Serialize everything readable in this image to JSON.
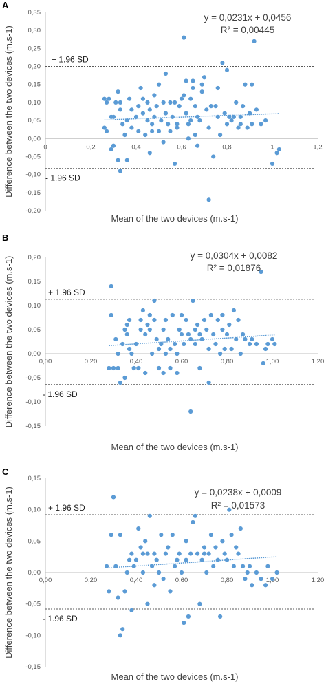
{
  "panels": [
    {
      "label": "A",
      "equation": "y = 0,0231x + 0,0456",
      "r2": "R² = 0,00445",
      "xlabel": "Mean of the two devices (m.s-1)",
      "ylabel": "Difference between the two devices (m.s-1)",
      "upper_sd_label": "+ 1.96 SD",
      "lower_sd_label": "- 1.96 SD",
      "x_ticks": [
        "0",
        "0,2",
        "0,4",
        "0,6",
        "0,8",
        "1",
        "1,2"
      ],
      "y_ticks": [
        "0,35",
        "0,30",
        "0,25",
        "0,20",
        "0,15",
        "0,10",
        "0,05",
        "0,00",
        "-0,05",
        "-0,10",
        "-0,15",
        "-0,20"
      ]
    },
    {
      "label": "B",
      "equation": "y = 0,0304x + 0,0082",
      "r2": "R² = 0,01876",
      "xlabel": "Mean of the two devices (m.s-1)",
      "ylabel": "Difference between the two devices (m.s-1)",
      "upper_sd_label": "+ 1.96 SD",
      "lower_sd_label": "- 1.96 SD",
      "x_ticks": [
        "0,00",
        "0,20",
        "0,40",
        "0,60",
        "0,80",
        "1,00",
        "1,20"
      ],
      "y_ticks": [
        "0,20",
        "0,15",
        "0,10",
        "0,05",
        "0,00",
        "-0,05",
        "-0,10",
        "-0,15"
      ]
    },
    {
      "label": "C",
      "equation": "y = 0,0238x + 0,0009",
      "r2": "R² = 0,01573",
      "xlabel": "Mean of the two devices (m.s-1)",
      "ylabel": "Difference between the two devices (m.s-1)",
      "upper_sd_label": "+ 1.96 SD",
      "lower_sd_label": "- 1.96 SD",
      "x_ticks": [
        "0,00",
        "0,20",
        "0,40",
        "0,60",
        "0,80",
        "1,00",
        "1,20"
      ],
      "y_ticks": [
        "0,15",
        "0,10",
        "0,05",
        "0,00",
        "-0,05",
        "-0,10",
        "-0,15"
      ]
    }
  ],
  "colors": {
    "points": "#5b9bd5",
    "trend": "#5b9bd5",
    "sd_line": "#595959",
    "axis": "#bfbfbf"
  },
  "chart_data": [
    {
      "type": "scatter",
      "xlim": [
        0,
        1.2
      ],
      "ylim": [
        -0.2,
        0.35
      ],
      "regression": {
        "slope": 0.0231,
        "intercept": 0.0456,
        "r2": 0.00445
      },
      "upper_loa": 0.2,
      "lower_loa": -0.083,
      "points": [
        [
          0.26,
          0.11
        ],
        [
          0.27,
          0.1
        ],
        [
          0.28,
          0.11
        ],
        [
          0.26,
          0.03
        ],
        [
          0.27,
          0.02
        ],
        [
          0.29,
          0.06
        ],
        [
          0.3,
          0.06
        ],
        [
          0.29,
          -0.03
        ],
        [
          0.3,
          -0.02
        ],
        [
          0.31,
          0.1
        ],
        [
          0.32,
          0.13
        ],
        [
          0.33,
          0.08
        ],
        [
          0.33,
          0.1
        ],
        [
          0.34,
          0.04
        ],
        [
          0.32,
          -0.06
        ],
        [
          0.33,
          -0.09
        ],
        [
          0.35,
          0.01
        ],
        [
          0.36,
          -0.06
        ],
        [
          0.36,
          0.05
        ],
        [
          0.37,
          0.11
        ],
        [
          0.38,
          0.08
        ],
        [
          0.4,
          0.06
        ],
        [
          0.41,
          0.09
        ],
        [
          0.41,
          0.02
        ],
        [
          0.42,
          0.14
        ],
        [
          0.43,
          0.11
        ],
        [
          0.43,
          0.07
        ],
        [
          0.44,
          0.01
        ],
        [
          0.45,
          0.1
        ],
        [
          0.45,
          0.05
        ],
        [
          0.46,
          0.08
        ],
        [
          0.46,
          -0.04
        ],
        [
          0.47,
          0.02
        ],
        [
          0.47,
          0.04
        ],
        [
          0.48,
          0.06
        ],
        [
          0.49,
          0.09
        ],
        [
          0.5,
          0.02
        ],
        [
          0.5,
          0.15
        ],
        [
          0.51,
          0.05
        ],
        [
          0.52,
          0.1
        ],
        [
          0.52,
          -0.01
        ],
        [
          0.53,
          0.07
        ],
        [
          0.53,
          0.18
        ],
        [
          0.54,
          0.04
        ],
        [
          0.55,
          0.1
        ],
        [
          0.56,
          0.06
        ],
        [
          0.57,
          0.1
        ],
        [
          0.57,
          -0.07
        ],
        [
          0.58,
          0.04
        ],
        [
          0.59,
          0.09
        ],
        [
          0.6,
          0.11
        ],
        [
          0.61,
          0.28
        ],
        [
          0.61,
          0.12
        ],
        [
          0.62,
          0.16
        ],
        [
          0.62,
          0.07
        ],
        [
          0.63,
          0.04
        ],
        [
          0.63,
          0.0
        ],
        [
          0.64,
          0.11
        ],
        [
          0.64,
          0.05
        ],
        [
          0.65,
          0.14
        ],
        [
          0.65,
          0.16
        ],
        [
          0.66,
          0.09
        ],
        [
          0.66,
          0.01
        ],
        [
          0.67,
          0.06
        ],
        [
          0.67,
          -0.02
        ],
        [
          0.68,
          0.05
        ],
        [
          0.69,
          0.15
        ],
        [
          0.69,
          0.13
        ],
        [
          0.7,
          0.17
        ],
        [
          0.71,
          0.08
        ],
        [
          0.72,
          0.03
        ],
        [
          0.73,
          0.09
        ],
        [
          0.74,
          -0.05
        ],
        [
          0.75,
          0.09
        ],
        [
          0.76,
          0.14
        ],
        [
          0.76,
          0.06
        ],
        [
          0.77,
          0.01
        ],
        [
          0.78,
          0.21
        ],
        [
          0.79,
          0.07
        ],
        [
          0.8,
          0.19
        ],
        [
          0.8,
          0.04
        ],
        [
          0.81,
          0.06
        ],
        [
          0.82,
          0.05
        ],
        [
          0.83,
          0.06
        ],
        [
          0.84,
          0.1
        ],
        [
          0.85,
          0.03
        ],
        [
          0.86,
          0.06
        ],
        [
          0.87,
          0.09
        ],
        [
          0.88,
          0.15
        ],
        [
          0.89,
          0.03
        ],
        [
          0.9,
          0.07
        ],
        [
          0.91,
          0.15
        ],
        [
          0.91,
          0.04
        ],
        [
          0.92,
          0.27
        ],
        [
          0.93,
          0.08
        ],
        [
          0.95,
          0.04
        ],
        [
          0.97,
          0.05
        ],
        [
          1.0,
          -0.07
        ],
        [
          1.02,
          -0.04
        ],
        [
          1.03,
          -0.03
        ],
        [
          0.72,
          -0.17
        ],
        [
          0.58,
          0.03
        ],
        [
          0.48,
          0.12
        ],
        [
          0.38,
          0.03
        ],
        [
          0.55,
          0.02
        ],
        [
          0.86,
          0.04
        ]
      ]
    },
    {
      "type": "scatter",
      "xlim": [
        0,
        1.2
      ],
      "ylim": [
        -0.15,
        0.2
      ],
      "regression": {
        "slope": 0.0304,
        "intercept": 0.0082,
        "r2": 0.01876
      },
      "upper_loa": 0.113,
      "lower_loa": -0.064,
      "points": [
        [
          0.28,
          -0.03
        ],
        [
          0.29,
          0.08
        ],
        [
          0.29,
          0.14
        ],
        [
          0.3,
          -0.03
        ],
        [
          0.31,
          0.03
        ],
        [
          0.32,
          -0.03
        ],
        [
          0.32,
          0.0
        ],
        [
          0.33,
          -0.06
        ],
        [
          0.34,
          0.02
        ],
        [
          0.35,
          0.05
        ],
        [
          0.35,
          -0.05
        ],
        [
          0.36,
          0.04
        ],
        [
          0.36,
          0.06
        ],
        [
          0.37,
          0.01
        ],
        [
          0.37,
          0.07
        ],
        [
          0.38,
          0.0
        ],
        [
          0.39,
          -0.03
        ],
        [
          0.4,
          0.02
        ],
        [
          0.41,
          -0.03
        ],
        [
          0.42,
          0.07
        ],
        [
          0.43,
          0.09
        ],
        [
          0.44,
          0.04
        ],
        [
          0.44,
          -0.04
        ],
        [
          0.45,
          0.06
        ],
        [
          0.46,
          0.08
        ],
        [
          0.46,
          0.05
        ],
        [
          0.47,
          0.0
        ],
        [
          0.48,
          0.11
        ],
        [
          0.48,
          0.07
        ],
        [
          0.49,
          0.03
        ],
        [
          0.5,
          -0.03
        ],
        [
          0.5,
          0.01
        ],
        [
          0.51,
          0.02
        ],
        [
          0.52,
          -0.04
        ],
        [
          0.53,
          0.07
        ],
        [
          0.53,
          0.0
        ],
        [
          0.54,
          0.03
        ],
        [
          0.55,
          0.01
        ],
        [
          0.55,
          -0.03
        ],
        [
          0.56,
          0.08
        ],
        [
          0.57,
          0.02
        ],
        [
          0.58,
          0.0
        ],
        [
          0.58,
          -0.04
        ],
        [
          0.59,
          0.05
        ],
        [
          0.6,
          0.08
        ],
        [
          0.61,
          0.02
        ],
        [
          0.62,
          0.07
        ],
        [
          0.63,
          0.04
        ],
        [
          0.64,
          -0.12
        ],
        [
          0.64,
          0.03
        ],
        [
          0.65,
          0.11
        ],
        [
          0.66,
          0.02
        ],
        [
          0.67,
          0.06
        ],
        [
          0.68,
          0.04
        ],
        [
          0.68,
          -0.03
        ],
        [
          0.69,
          0.03
        ],
        [
          0.7,
          0.07
        ],
        [
          0.71,
          0.05
        ],
        [
          0.72,
          -0.06
        ],
        [
          0.72,
          0.01
        ],
        [
          0.73,
          0.08
        ],
        [
          0.74,
          0.04
        ],
        [
          0.75,
          0.02
        ],
        [
          0.76,
          0.07
        ],
        [
          0.77,
          0.0
        ],
        [
          0.78,
          0.05
        ],
        [
          0.78,
          0.08
        ],
        [
          0.79,
          0.01
        ],
        [
          0.8,
          0.04
        ],
        [
          0.81,
          0.06
        ],
        [
          0.82,
          0.01
        ],
        [
          0.83,
          0.09
        ],
        [
          0.84,
          0.03
        ],
        [
          0.85,
          0.07
        ],
        [
          0.86,
          0.0
        ],
        [
          0.87,
          0.04
        ],
        [
          0.88,
          0.03
        ],
        [
          0.9,
          0.02
        ],
        [
          0.91,
          0.03
        ],
        [
          0.93,
          0.02
        ],
        [
          0.95,
          0.17
        ],
        [
          0.96,
          -0.02
        ],
        [
          0.97,
          0.01
        ],
        [
          0.98,
          0.02
        ],
        [
          1.0,
          0.03
        ],
        [
          1.01,
          0.02
        ],
        [
          0.6,
          0.04
        ],
        [
          0.42,
          0.05
        ],
        [
          0.66,
          0.05
        ],
        [
          0.52,
          0.05
        ]
      ]
    },
    {
      "type": "scatter",
      "xlim": [
        0,
        1.2
      ],
      "ylim": [
        -0.15,
        0.15
      ],
      "regression": {
        "slope": 0.0238,
        "intercept": 0.0009,
        "r2": 0.01573
      },
      "upper_loa": 0.092,
      "lower_loa": -0.058,
      "points": [
        [
          0.27,
          0.01
        ],
        [
          0.28,
          -0.03
        ],
        [
          0.29,
          0.06
        ],
        [
          0.3,
          0.12
        ],
        [
          0.31,
          0.01
        ],
        [
          0.32,
          -0.04
        ],
        [
          0.33,
          0.06
        ],
        [
          0.33,
          -0.1
        ],
        [
          0.34,
          -0.09
        ],
        [
          0.35,
          -0.03
        ],
        [
          0.36,
          0.0
        ],
        [
          0.37,
          0.02
        ],
        [
          0.38,
          0.03
        ],
        [
          0.38,
          -0.06
        ],
        [
          0.39,
          0.01
        ],
        [
          0.4,
          0.02
        ],
        [
          0.41,
          0.07
        ],
        [
          0.42,
          0.04
        ],
        [
          0.43,
          0.0
        ],
        [
          0.44,
          0.05
        ],
        [
          0.45,
          0.03
        ],
        [
          0.45,
          -0.05
        ],
        [
          0.46,
          0.09
        ],
        [
          0.47,
          0.01
        ],
        [
          0.48,
          0.03
        ],
        [
          0.48,
          -0.02
        ],
        [
          0.49,
          0.02
        ],
        [
          0.5,
          0.0
        ],
        [
          0.51,
          0.06
        ],
        [
          0.52,
          -0.01
        ],
        [
          0.53,
          0.03
        ],
        [
          0.54,
          0.04
        ],
        [
          0.55,
          -0.03
        ],
        [
          0.56,
          0.06
        ],
        [
          0.57,
          0.01
        ],
        [
          0.58,
          0.02
        ],
        [
          0.59,
          0.03
        ],
        [
          0.6,
          0.0
        ],
        [
          0.61,
          -0.08
        ],
        [
          0.62,
          0.05
        ],
        [
          0.63,
          -0.07
        ],
        [
          0.64,
          0.03
        ],
        [
          0.65,
          0.08
        ],
        [
          0.66,
          0.09
        ],
        [
          0.67,
          0.03
        ],
        [
          0.68,
          -0.05
        ],
        [
          0.69,
          0.02
        ],
        [
          0.7,
          0.04
        ],
        [
          0.71,
          0.0
        ],
        [
          0.72,
          0.03
        ],
        [
          0.73,
          0.06
        ],
        [
          0.74,
          0.01
        ],
        [
          0.75,
          0.04
        ],
        [
          0.76,
          0.02
        ],
        [
          0.77,
          -0.07
        ],
        [
          0.78,
          0.05
        ],
        [
          0.79,
          0.03
        ],
        [
          0.8,
          0.02
        ],
        [
          0.81,
          0.1
        ],
        [
          0.82,
          0.06
        ],
        [
          0.83,
          0.01
        ],
        [
          0.84,
          0.04
        ],
        [
          0.85,
          0.03
        ],
        [
          0.86,
          0.07
        ],
        [
          0.87,
          0.01
        ],
        [
          0.88,
          -0.01
        ],
        [
          0.89,
          0.0
        ],
        [
          0.9,
          0.01
        ],
        [
          0.91,
          -0.02
        ],
        [
          0.93,
          0.0
        ],
        [
          0.95,
          -0.01
        ],
        [
          0.97,
          -0.02
        ],
        [
          0.98,
          0.01
        ],
        [
          1.0,
          -0.01
        ],
        [
          1.02,
          0.0
        ],
        [
          0.62,
          0.02
        ],
        [
          0.43,
          0.03
        ],
        [
          0.7,
          0.03
        ]
      ]
    }
  ]
}
